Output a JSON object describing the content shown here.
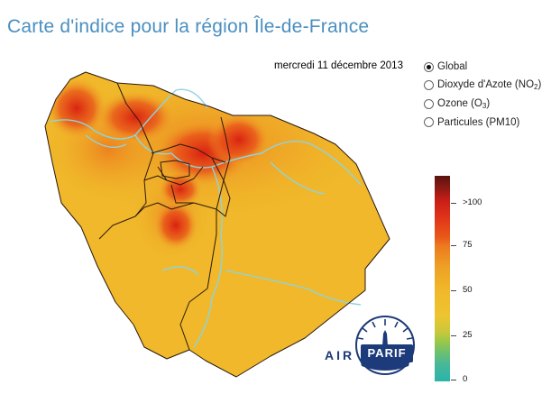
{
  "title": "Carte d'indice pour la région Île-de-France",
  "date": "mercredi 11 décembre 2013",
  "options": [
    {
      "label": "Global",
      "selected": true
    },
    {
      "label": "Dioxyde d'Azote (NO",
      "sub": "2",
      "suffix": ")",
      "selected": false
    },
    {
      "label": "Ozone (O",
      "sub": "3",
      "suffix": ")",
      "selected": false
    },
    {
      "label": "Particules (PM10)",
      "selected": false
    }
  ],
  "legend": {
    "labels": [
      ">100",
      "75",
      "50",
      "25",
      "0"
    ]
  },
  "logo": {
    "air": "AIR",
    "parif": "PARIF"
  },
  "colors": {
    "title": "#4a8fc0",
    "map_base": "#f0b82a",
    "hot": "#e0321a",
    "river": "#8fd3e0",
    "logo": "#1d3a7a"
  }
}
